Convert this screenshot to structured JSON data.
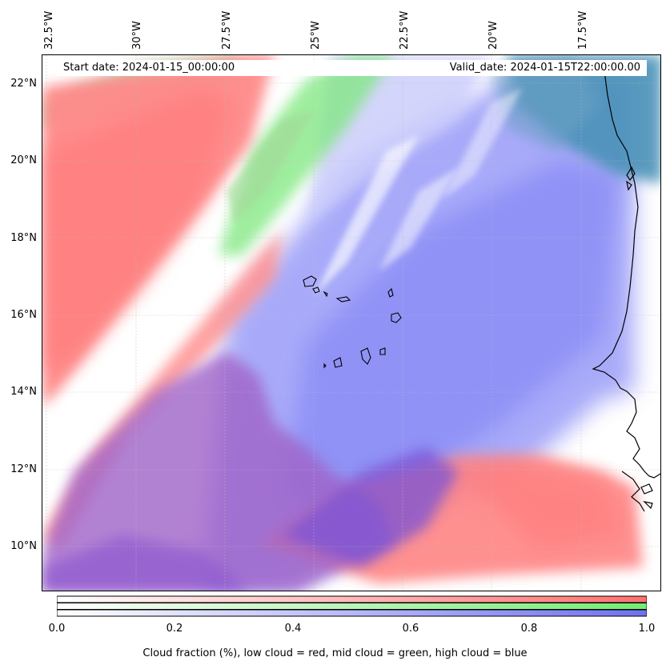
{
  "map": {
    "start_date": "Start date: 2024-01-15_00:00:00",
    "valid_date": "Valid_date: 2024-01-15T22:00:00.00",
    "lon_ticks": [
      "32.5°W",
      "30°W",
      "27.5°W",
      "25°W",
      "22.5°W",
      "20°W",
      "17.5°W"
    ],
    "lat_ticks": [
      "22°N",
      "20°N",
      "18°N",
      "16°N",
      "14°N",
      "12°N",
      "10°N"
    ],
    "gridlines": true,
    "layers": [
      {
        "name": "low cloud",
        "color": "#ff8080"
      },
      {
        "name": "mid cloud",
        "color": "#80f080"
      },
      {
        "name": "high cloud",
        "color": "#8080ff"
      }
    ],
    "colors": {
      "coastline": "#000000",
      "background": "#ffffff"
    }
  },
  "colorbar": {
    "ticks": [
      "0.0",
      "0.2",
      "0.4",
      "0.6",
      "0.8",
      "1.0"
    ],
    "label": "Cloud fraction (%), low cloud = red, mid cloud = green, high cloud = blue"
  }
}
